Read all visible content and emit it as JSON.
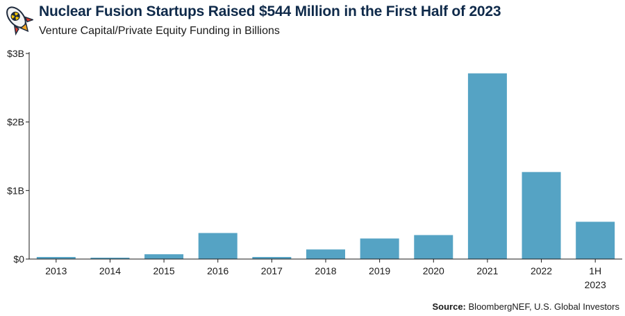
{
  "header": {
    "title": "Nuclear Fusion Startups Raised $544 Million in the First Half of 2023",
    "subtitle": "Venture Capital/Private Equity Funding in Billions"
  },
  "source": {
    "label": "Source:",
    "text": "BloombergNEF, U.S. Global Investors"
  },
  "colors": {
    "bar": "#55a3c4",
    "axis": "#1a1a1a",
    "title": "#0f2a4a"
  },
  "chart_data": {
    "type": "bar",
    "title": "Nuclear Fusion Startups Raised $544 Million in the First Half of 2023",
    "ylabel": "Venture Capital/Private Equity Funding in Billions",
    "xlabel": "",
    "categories": [
      "2013",
      "2014",
      "2015",
      "2016",
      "2017",
      "2018",
      "2019",
      "2020",
      "2021",
      "2022",
      "1H 2023"
    ],
    "category_lines": [
      [
        "2013"
      ],
      [
        "2014"
      ],
      [
        "2015"
      ],
      [
        "2016"
      ],
      [
        "2017"
      ],
      [
        "2018"
      ],
      [
        "2019"
      ],
      [
        "2020"
      ],
      [
        "2021"
      ],
      [
        "2022"
      ],
      [
        "1H",
        "2023"
      ]
    ],
    "values": [
      0.03,
      0.02,
      0.07,
      0.38,
      0.03,
      0.14,
      0.3,
      0.35,
      2.71,
      1.27,
      0.544
    ],
    "ylim": [
      0,
      3
    ],
    "yticks": [
      0,
      1,
      2,
      3
    ],
    "ytick_labels": [
      "$0",
      "$1B",
      "$2B",
      "$3B"
    ],
    "grid": false,
    "legend": "none"
  }
}
